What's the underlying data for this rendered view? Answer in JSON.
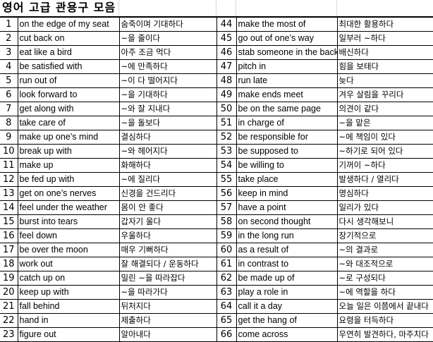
{
  "title": "영어 고급 관용구 모음",
  "rows": [
    [
      [
        "1",
        "on the edge of my seat",
        "숨죽이며 기대하다"
      ],
      [
        "44",
        "make the most of",
        "최대한 활용하다"
      ]
    ],
    [
      [
        "2",
        "cut back on",
        "~을 줄이다"
      ],
      [
        "45",
        "go out of one’s way",
        "일부러 ~하다"
      ]
    ],
    [
      [
        "3",
        "eat like a bird",
        "아주 조금 먹다"
      ],
      [
        "46",
        "stab someone in the back",
        "배신하다"
      ]
    ],
    [
      [
        "4",
        "be satisfied with",
        "~에 만족하다"
      ],
      [
        "47",
        "pitch in",
        "힘을 보태다"
      ]
    ],
    [
      [
        "5",
        "run out of",
        "~이 다 떨어지다"
      ],
      [
        "48",
        "run late",
        "늦다"
      ]
    ],
    [
      [
        "6",
        "look forward to",
        "~을 기대하다"
      ],
      [
        "49",
        "make ends meet",
        "겨우 살림을 꾸리다"
      ]
    ],
    [
      [
        "7",
        "get along with",
        "~와 잘 지내다"
      ],
      [
        "50",
        "be on the same page",
        "의견이 같다"
      ]
    ],
    [
      [
        "8",
        "take care of",
        "~을 돌보다"
      ],
      [
        "51",
        "in charge of",
        "~을 맡은"
      ]
    ],
    [
      [
        "9",
        "make up one’s mind",
        "결심하다"
      ],
      [
        "52",
        "be responsible for",
        "~에 책임이 있다"
      ]
    ],
    [
      [
        "10",
        "break up with",
        "~와 헤어지다"
      ],
      [
        "53",
        "be supposed to",
        "~하기로 되어 있다"
      ]
    ],
    [
      [
        "11",
        "make up",
        "화해하다"
      ],
      [
        "54",
        "be willing to",
        "기꺼이 ~하다"
      ]
    ],
    [
      [
        "12",
        "be fed up with",
        "~에 질리다"
      ],
      [
        "55",
        "take place",
        "발생하다 / 열리다"
      ]
    ],
    [
      [
        "13",
        "get on one’s nerves",
        "신경을 건드리다"
      ],
      [
        "56",
        "keep in mind",
        "명심하다"
      ]
    ],
    [
      [
        "14",
        "feel under the weather",
        "몸이 안 좋다"
      ],
      [
        "57",
        "have a point",
        "일리가 있다"
      ]
    ],
    [
      [
        "15",
        "burst into tears",
        "갑자기 울다"
      ],
      [
        "58",
        "on second thought",
        "다시 생각해보니"
      ]
    ],
    [
      [
        "16",
        "feel down",
        "우울하다"
      ],
      [
        "59",
        " in the long run",
        "장기적으로"
      ]
    ],
    [
      [
        "17",
        "be over the moon",
        "매우 기뻐하다"
      ],
      [
        "60",
        "as a result of",
        "~의 결과로"
      ]
    ],
    [
      [
        "18",
        "work out",
        "잘 해결되다 / 운동하다"
      ],
      [
        "61",
        "in contrast to",
        "~와 대조적으로"
      ]
    ],
    [
      [
        "19",
        "catch up on",
        "밀린 ~을 따라잡다"
      ],
      [
        "62",
        "be made up of",
        "~로 구성되다"
      ]
    ],
    [
      [
        "20",
        "keep up with",
        "~을 따라가다"
      ],
      [
        "63",
        " play a role in",
        "~에 역할을 하다"
      ]
    ],
    [
      [
        "21",
        "fall behind",
        "뒤처지다"
      ],
      [
        "64",
        "call it a day",
        "오늘 일은 이쯤에서 끝내다"
      ]
    ],
    [
      [
        "22",
        "hand in",
        "제출하다"
      ],
      [
        "65",
        "get the hang of",
        "요령을 터득하다"
      ]
    ],
    [
      [
        "23",
        "figure out",
        "알아내다"
      ],
      [
        "66",
        "come across",
        "우연히 발견하다, 마주치다"
      ]
    ]
  ]
}
